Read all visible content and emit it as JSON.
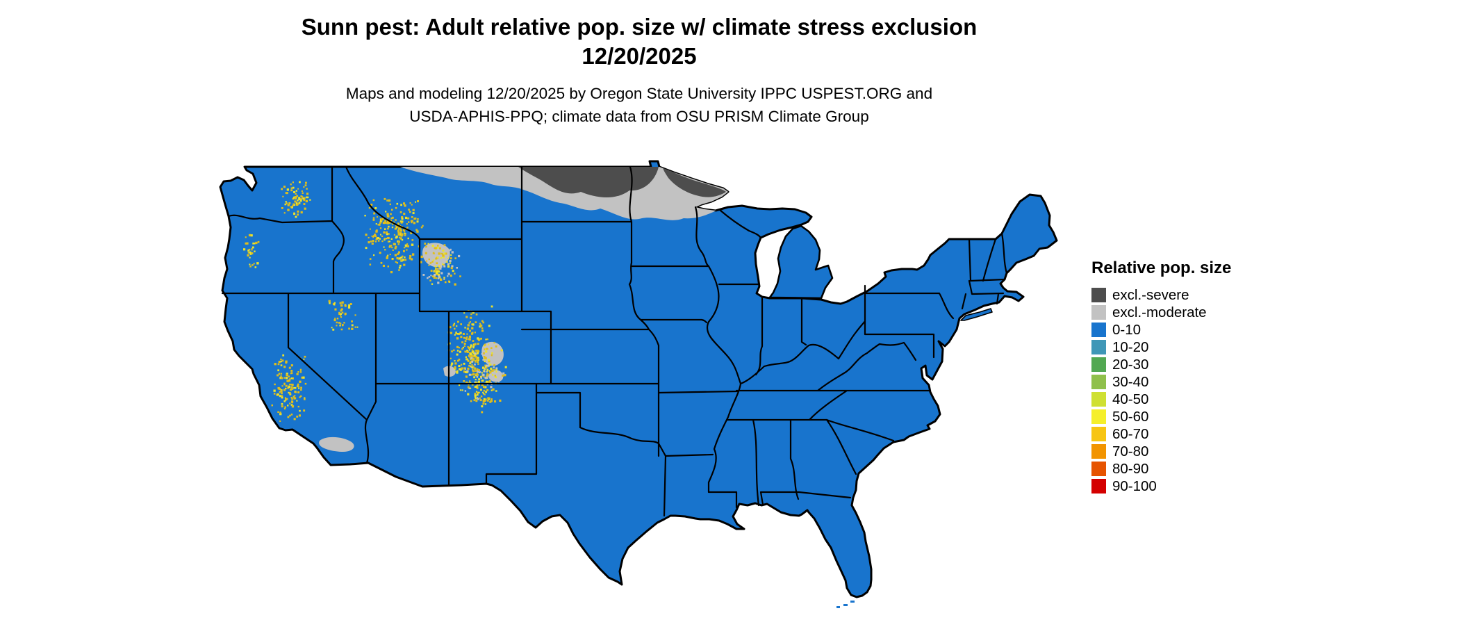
{
  "title": {
    "line1": "Sunn pest: Adult relative pop. size w/ climate stress exclusion",
    "line2": "12/20/2025"
  },
  "subtitle": {
    "line1": "Maps and modeling 12/20/2025 by Oregon State University IPPC USPEST.ORG and",
    "line2": "USDA-APHIS-PPQ; climate data from OSU PRISM Climate Group"
  },
  "legend": {
    "title": "Relative pop. size",
    "items": [
      {
        "label": "excl.-severe",
        "color": "#4d4d4d"
      },
      {
        "label": "excl.-moderate",
        "color": "#c2c2c2"
      },
      {
        "label": "0-10",
        "color": "#1874cd"
      },
      {
        "label": "10-20",
        "color": "#3f97b7"
      },
      {
        "label": "20-30",
        "color": "#52a852"
      },
      {
        "label": "30-40",
        "color": "#8fc04b"
      },
      {
        "label": "40-50",
        "color": "#cfe032"
      },
      {
        "label": "50-60",
        "color": "#f5ef2a"
      },
      {
        "label": "60-70",
        "color": "#f7c512"
      },
      {
        "label": "70-80",
        "color": "#f29400"
      },
      {
        "label": "80-90",
        "color": "#e65300"
      },
      {
        "label": "90-100",
        "color": "#d40000"
      }
    ]
  },
  "map": {
    "dominant_class": "0-10",
    "colors": {
      "base_fill": "#1874cd",
      "excl_severe": "#4d4d4d",
      "excl_moderate": "#c2c2c2",
      "border": "#000000",
      "speckle_gold": "#e0be1c",
      "speckle_yellow": "#ede32b",
      "speckle_gray": "#c2c2c2"
    }
  }
}
